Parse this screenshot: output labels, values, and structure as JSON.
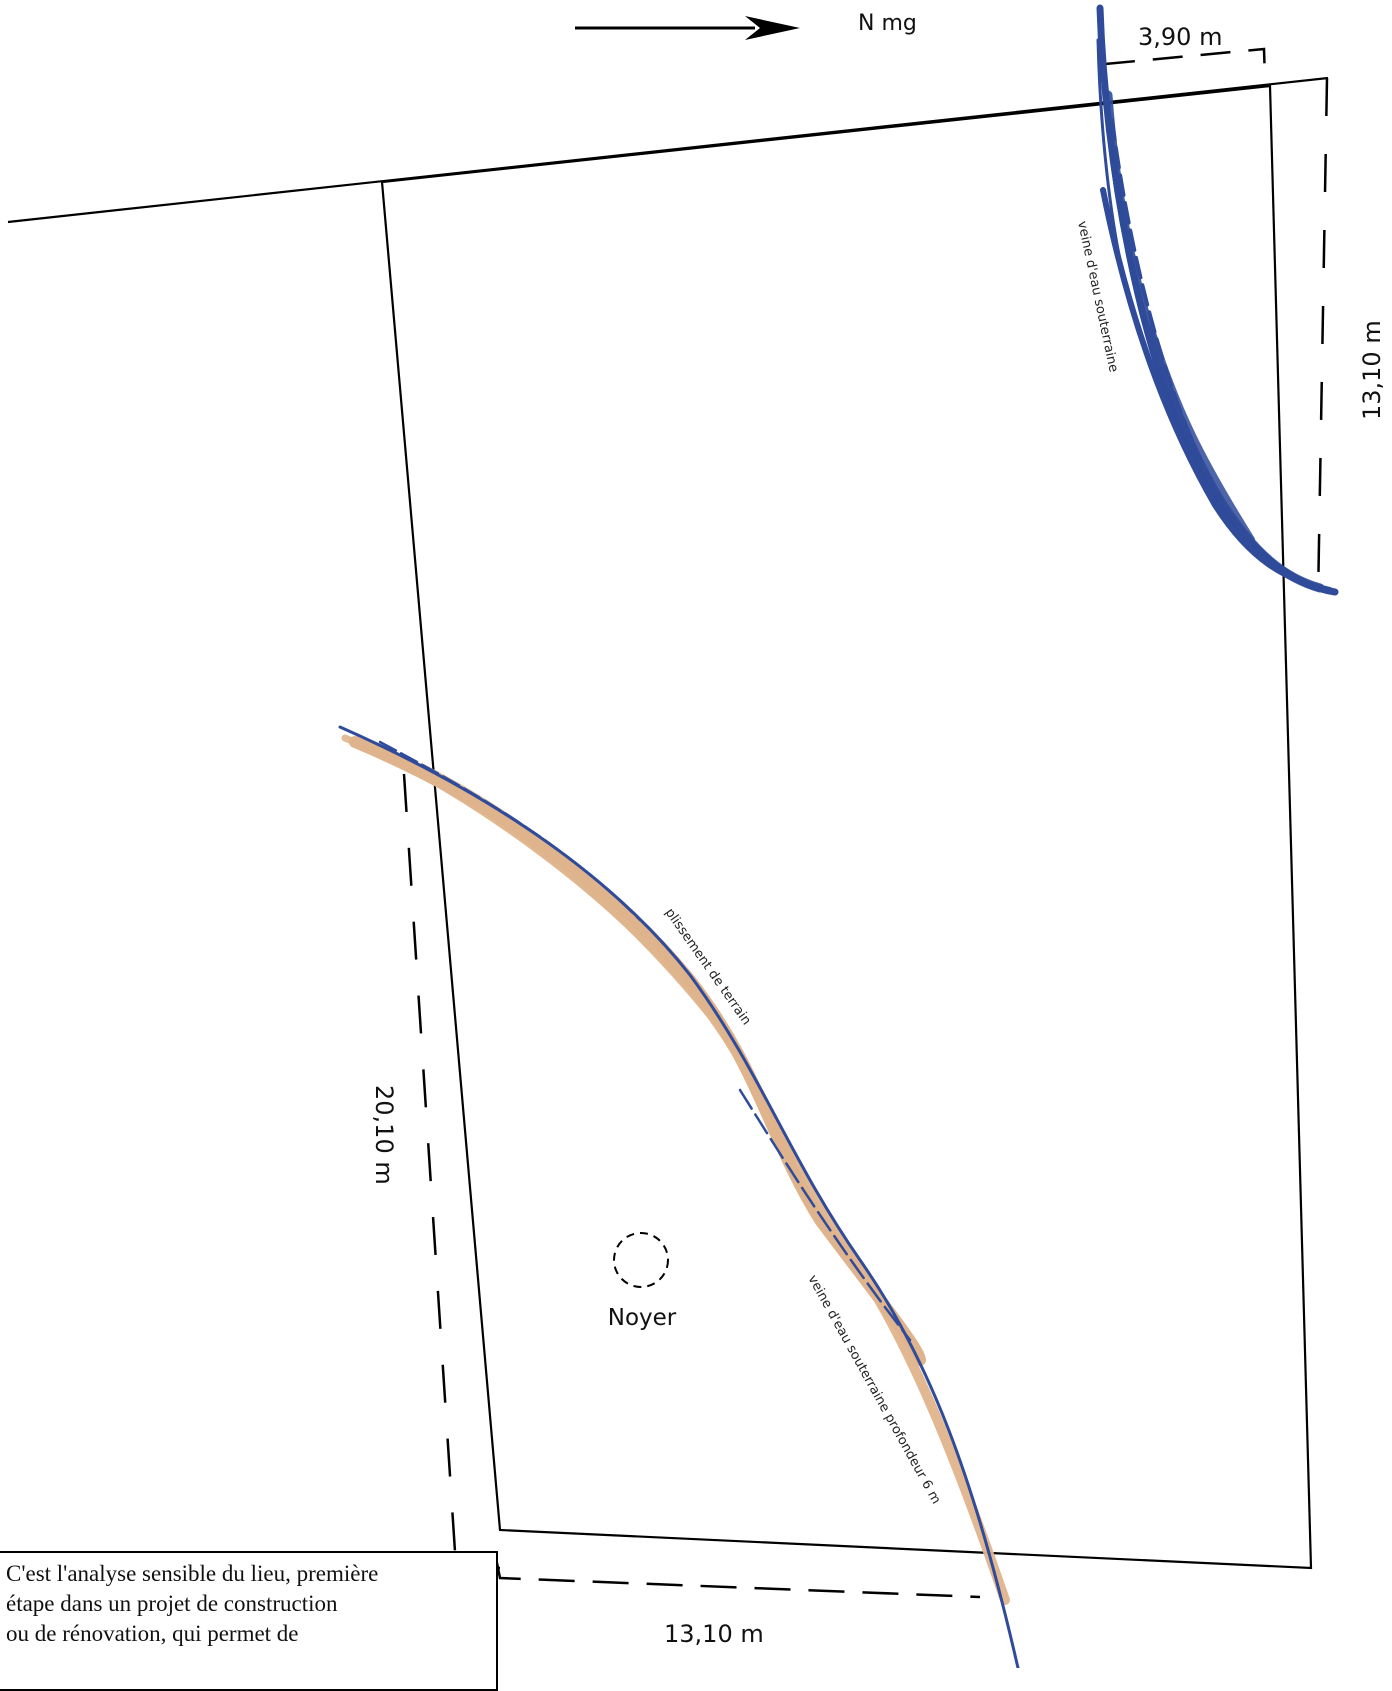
{
  "north_arrow": {
    "label": "N mg"
  },
  "dimensions": {
    "top_offset": "3,90 m",
    "right_side": "13,10 m",
    "left_side": "20,10 m",
    "bottom_side": "13,10 m"
  },
  "annotations": {
    "vein_upper": "veine d'eau souterraine",
    "fold": "plissement de terrain",
    "vein_lower": "veine d'eau souterraine profondeur 6 m",
    "tree": "Noyer"
  },
  "caption": {
    "line1": "C'est l'analyse sensible du lieu, première",
    "line2": "étape dans un projet de construction",
    "line3": "ou de rénovation, qui permet de"
  },
  "colors": {
    "water_vein": "#2f4b9a",
    "terrain_fold": "#dfb48c",
    "lines": "#000000"
  }
}
